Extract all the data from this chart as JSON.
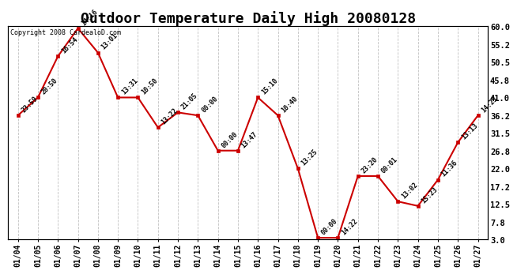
{
  "title": "Outdoor Temperature Daily High 20080128",
  "copyright": "Copyright 2008 CardealoD.com",
  "x_labels": [
    "01/04",
    "01/05",
    "01/06",
    "01/07",
    "01/08",
    "01/09",
    "01/10",
    "01/11",
    "01/12",
    "01/13",
    "01/14",
    "01/15",
    "01/16",
    "01/17",
    "01/18",
    "01/19",
    "01/20",
    "01/21",
    "01/22",
    "01/23",
    "01/24",
    "01/25",
    "01/26",
    "01/27"
  ],
  "y_values": [
    36.2,
    41.0,
    52.0,
    59.5,
    53.0,
    41.0,
    41.0,
    33.0,
    37.0,
    36.2,
    26.8,
    26.8,
    41.0,
    36.2,
    22.0,
    3.5,
    3.5,
    20.0,
    20.0,
    13.2,
    12.0,
    19.0,
    29.0,
    36.2
  ],
  "point_labels": [
    "23:59",
    "20:50",
    "16:54",
    "14:16",
    "13:01",
    "13:31",
    "10:50",
    "13:22",
    "21:05",
    "00:00",
    "00:00",
    "13:47",
    "15:10",
    "10:40",
    "13:25",
    "00:00",
    "14:22",
    "23:20",
    "00:01",
    "13:02",
    "15:23",
    "11:36",
    "13:13",
    "14:23"
  ],
  "y_ticks": [
    3.0,
    7.8,
    12.5,
    17.2,
    22.0,
    26.8,
    31.5,
    36.2,
    41.0,
    45.8,
    50.5,
    55.2,
    60.0
  ],
  "ylim": [
    3.0,
    60.0
  ],
  "line_color": "#cc0000",
  "marker_color": "#cc0000",
  "grid_color": "#bbbbbb",
  "bg_color": "#ffffff",
  "title_fontsize": 13,
  "label_fontsize": 7.5
}
